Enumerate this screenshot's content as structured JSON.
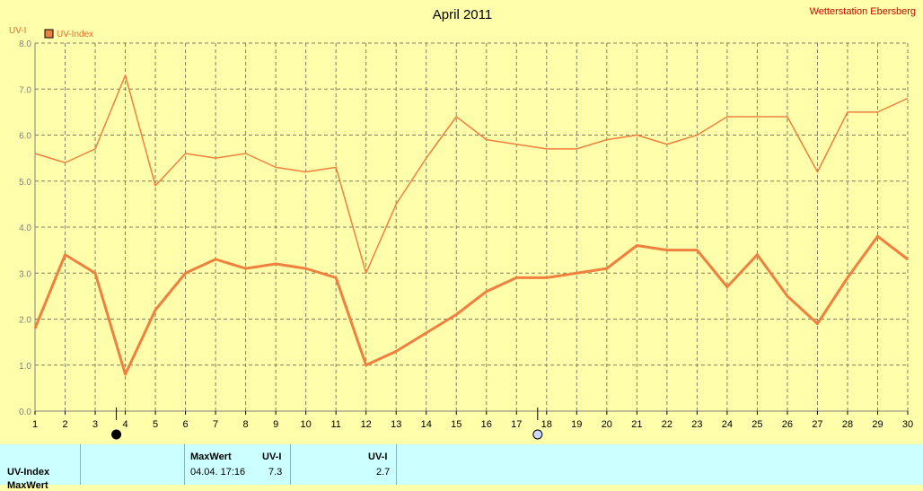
{
  "chart_data": {
    "type": "line",
    "title": "April 2011",
    "station": "Wetterstation Ebersberg",
    "ylabel": "UV-I",
    "ylim": [
      0,
      8
    ],
    "yticks": [
      "0.0",
      "1.0",
      "2.0",
      "3.0",
      "4.0",
      "5.0",
      "6.0",
      "7.0",
      "8.0"
    ],
    "x": [
      1,
      2,
      3,
      4,
      5,
      6,
      7,
      8,
      9,
      10,
      11,
      12,
      13,
      14,
      15,
      16,
      17,
      18,
      19,
      20,
      21,
      22,
      23,
      24,
      25,
      26,
      27,
      28,
      29,
      30
    ],
    "legend": "UV-Index",
    "colors": {
      "line": "#f08040",
      "grid": "#808060",
      "axis": "#808080",
      "background": "#fffeaa"
    },
    "series": [
      {
        "name": "",
        "style": "thin",
        "values": [
          5.6,
          5.4,
          5.7,
          7.3,
          4.9,
          5.6,
          5.5,
          5.6,
          5.3,
          5.2,
          5.3,
          3.0,
          4.5,
          5.5,
          6.4,
          5.9,
          5.8,
          5.7,
          5.7,
          5.9,
          6.0,
          5.8,
          6.0,
          6.4,
          6.4,
          6.4,
          5.2,
          6.5,
          6.5,
          6.8
        ]
      },
      {
        "name": "UV-Index",
        "style": "thick",
        "values": [
          1.8,
          3.4,
          3.0,
          0.8,
          2.2,
          3.0,
          3.3,
          3.1,
          3.2,
          3.1,
          2.9,
          1.0,
          1.3,
          1.7,
          2.1,
          2.6,
          2.9,
          2.9,
          3.0,
          3.1,
          3.6,
          3.5,
          3.5,
          2.7,
          3.4,
          2.5,
          1.9,
          2.9,
          3.8,
          3.3
        ]
      }
    ],
    "markers": [
      {
        "day": 4,
        "icon": "new-moon-icon"
      },
      {
        "day": 18,
        "icon": "full-moon-icon"
      }
    ]
  },
  "table": {
    "row1_label": "UV-Index",
    "row2_label": "MaxWert",
    "max_header": "MaxWert",
    "uvi_header": "UV-I",
    "max_time": "04.04.  17:16",
    "max_value": "7.3",
    "avg_header": "UV-I",
    "avg_value": "2.7"
  }
}
